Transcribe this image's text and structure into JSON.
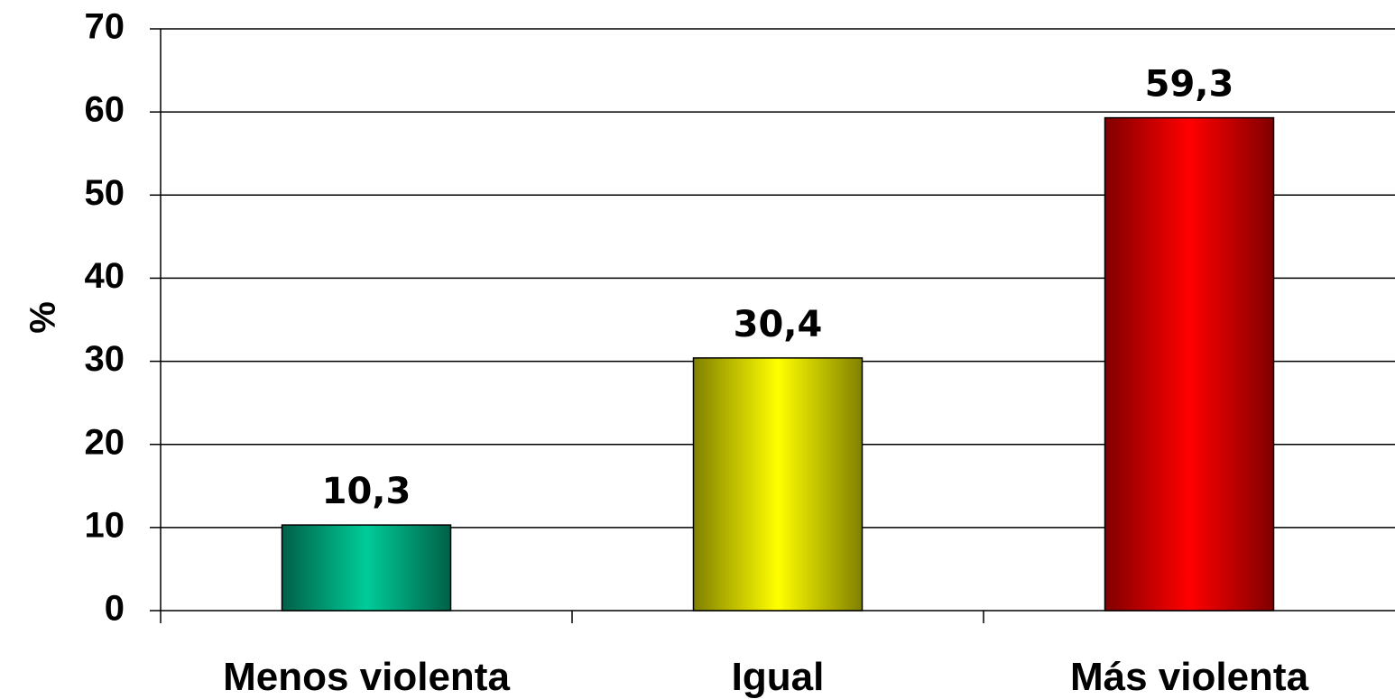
{
  "chart_data": {
    "type": "bar",
    "categories": [
      "Menos violenta",
      "Igual",
      "Más violenta"
    ],
    "values": [
      10.3,
      30.4,
      59.3
    ],
    "data_labels": [
      "10,3",
      "30,4",
      "59,3"
    ],
    "title": "",
    "xlabel": "",
    "ylabel": "%",
    "ylim": [
      0,
      70
    ],
    "yticks": [
      0,
      10,
      20,
      30,
      40,
      50,
      60,
      70
    ],
    "ytick_labels": [
      "0",
      "10",
      "20",
      "30",
      "40",
      "50",
      "60",
      "70"
    ],
    "grid": true,
    "legend": "none",
    "bar_colors": [
      {
        "edge": "#006047",
        "center": "#00cc99"
      },
      {
        "edge": "#808000",
        "center": "#ffff00"
      },
      {
        "edge": "#800000",
        "center": "#ff0000"
      }
    ],
    "grid_color": "#000000",
    "background": "#ffffff"
  }
}
